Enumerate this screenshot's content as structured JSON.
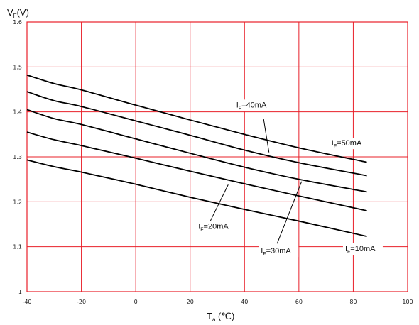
{
  "chart_data": {
    "type": "line",
    "title": "",
    "xlabel": "T",
    "xlabel_subscript": "a",
    "xlabel_unit": "(℃)",
    "ylabel": "V",
    "ylabel_subscript": "F",
    "ylabel_unit": "(V)",
    "xlim": [
      -40,
      100
    ],
    "ylim": [
      1.0,
      1.6
    ],
    "x_ticks": [
      -40,
      -20,
      0,
      20,
      40,
      60,
      80,
      100
    ],
    "y_ticks": [
      1,
      1.1,
      1.2,
      1.3,
      1.4,
      1.5,
      1.6
    ],
    "x_tick_labels": [
      "-40",
      "-20",
      "0",
      "20",
      "40",
      "60",
      "80",
      "100"
    ],
    "y_tick_labels": [
      "1",
      "1.1",
      "1.2",
      "1.3",
      "1.4",
      "1.5",
      "1.6"
    ],
    "grid": true,
    "grid_color": "#e8202a",
    "line_color": "#000000",
    "series": [
      {
        "name": "IF=50mA",
        "prefix": "I",
        "sub": "F",
        "suffix": "=50mA",
        "x": [
          -40,
          -30,
          -20,
          0,
          20,
          40,
          60,
          85
        ],
        "y": [
          1.482,
          1.463,
          1.449,
          1.415,
          1.382,
          1.35,
          1.32,
          1.288
        ]
      },
      {
        "name": "IF=40mA",
        "prefix": "I",
        "sub": "F",
        "suffix": "=40mA",
        "x": [
          -40,
          -30,
          -20,
          0,
          20,
          40,
          60,
          85
        ],
        "y": [
          1.445,
          1.425,
          1.412,
          1.38,
          1.348,
          1.315,
          1.287,
          1.258
        ]
      },
      {
        "name": "IF=30mA",
        "prefix": "I",
        "sub": "F",
        "suffix": "=30mA",
        "x": [
          -40,
          -30,
          -20,
          0,
          20,
          40,
          60,
          85
        ],
        "y": [
          1.405,
          1.385,
          1.372,
          1.34,
          1.308,
          1.277,
          1.25,
          1.222
        ]
      },
      {
        "name": "IF=20mA",
        "prefix": "I",
        "sub": "F",
        "suffix": "=20mA",
        "x": [
          -40,
          -30,
          -20,
          0,
          20,
          40,
          60,
          85
        ],
        "y": [
          1.355,
          1.338,
          1.325,
          1.297,
          1.268,
          1.24,
          1.213,
          1.18
        ]
      },
      {
        "name": "IF=10mA",
        "prefix": "I",
        "sub": "F",
        "suffix": "=10mA",
        "x": [
          -40,
          -30,
          -20,
          0,
          20,
          40,
          60,
          85
        ],
        "y": [
          1.293,
          1.278,
          1.266,
          1.239,
          1.21,
          1.183,
          1.157,
          1.123
        ]
      }
    ],
    "annotations": [
      {
        "prefix": "I",
        "sub": "F",
        "suffix": "=40mA",
        "text": "IF=40mA",
        "text_x": 37,
        "text_y": 1.41,
        "pointer": [
          [
            47,
            1.385
          ],
          [
            49,
            1.31
          ]
        ]
      },
      {
        "prefix": "I",
        "sub": "F",
        "suffix": "=50mA",
        "text": "IF=50mA",
        "text_x": 72,
        "text_y": 1.325,
        "pointer": null
      },
      {
        "prefix": "I",
        "sub": "F",
        "suffix": "=20mA",
        "text": "IF=20mA",
        "text_x": 23,
        "text_y": 1.14,
        "pointer": [
          [
            27.5,
            1.158
          ],
          [
            34,
            1.238
          ]
        ]
      },
      {
        "prefix": "I",
        "sub": "F",
        "suffix": "=30mA",
        "text": "IF=30mA",
        "text_x": 46,
        "text_y": 1.085,
        "pointer": [
          [
            52,
            1.107
          ],
          [
            61,
            1.245
          ]
        ]
      },
      {
        "prefix": "I",
        "sub": "F",
        "suffix": "=10mA",
        "text": "IF=10mA",
        "text_x": 77,
        "text_y": 1.09,
        "pointer": null
      }
    ]
  }
}
